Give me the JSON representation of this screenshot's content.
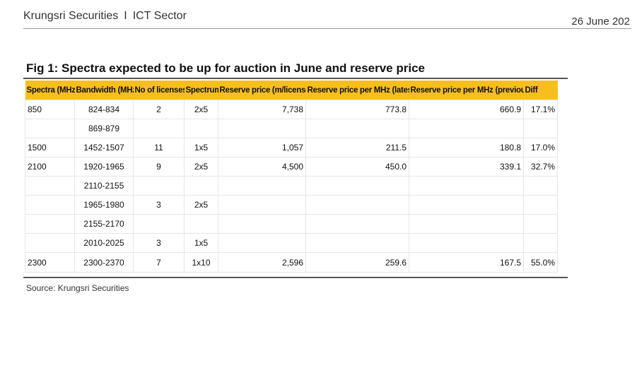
{
  "header": {
    "brand": "Krungsri Securities",
    "separator": "I",
    "sector": "ICT Sector",
    "date": "26 June 202"
  },
  "figure": {
    "title": "Fig 1: Spectra expected to be up for auction in June and reserve price",
    "columns": [
      "Spectra (MHz)",
      "Bandwidth (MHz)",
      "No of licenses",
      "Spectrum",
      "Reserve price (m/license)",
      "Reserve price per MHz (latest)",
      "Reserve price per MHz (previous)",
      "Diff"
    ],
    "rows": [
      [
        "850",
        "824-834",
        "2",
        "2x5",
        "7,738",
        "773.8",
        "660.9",
        "17.1%"
      ],
      [
        "",
        "869-879",
        "",
        "",
        "",
        "",
        "",
        ""
      ],
      [
        "1500",
        "1452-1507",
        "11",
        "1x5",
        "1,057",
        "211.5",
        "180.8",
        "17.0%"
      ],
      [
        "2100",
        "1920-1965",
        "9",
        "2x5",
        "4,500",
        "450.0",
        "339.1",
        "32.7%"
      ],
      [
        "",
        "2110-2155",
        "",
        "",
        "",
        "",
        "",
        ""
      ],
      [
        "",
        "1965-1980",
        "3",
        "2x5",
        "",
        "",
        "",
        ""
      ],
      [
        "",
        "2155-2170",
        "",
        "",
        "",
        "",
        "",
        ""
      ],
      [
        "",
        "2010-2025",
        "3",
        "1x5",
        "",
        "",
        "",
        ""
      ],
      [
        "2300",
        "2300-2370",
        "7",
        "1x10",
        "2,596",
        "259.6",
        "167.5",
        "55.0%"
      ]
    ],
    "source": "Source: Krungsri Securities"
  }
}
